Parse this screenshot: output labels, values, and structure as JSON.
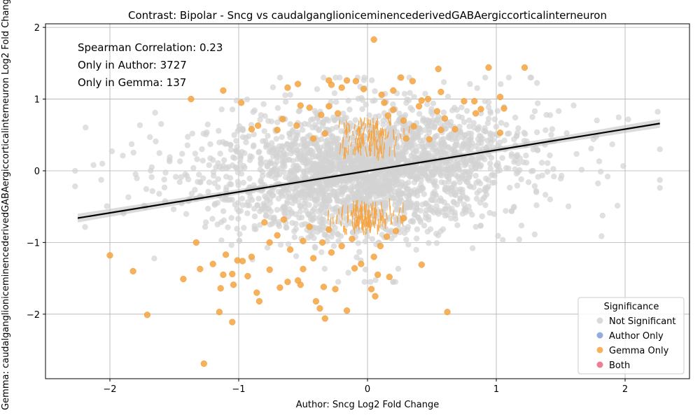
{
  "chart_data": {
    "type": "scatter",
    "title": "Contrast: Bipolar - Sncg vs caudalganglioniceminencederivedGABAergiccorticalinterneuron",
    "xlabel": "Author: Sncg Log2 Fold Change",
    "ylabel": "Gemma: caudalganglioniceminencederivedGABAergiccorticalinterneuron Log2 Fold Change",
    "xlim": [
      -2.5,
      2.5
    ],
    "ylim": [
      -2.9,
      2.05
    ],
    "x_ticks": [
      -2,
      -1,
      0,
      1,
      2
    ],
    "y_ticks": [
      -2,
      -1,
      0,
      1,
      2
    ],
    "grid": true,
    "annotations": [
      "Spearman Correlation: 0.23",
      "Only in Author: 3727",
      "Only in Gemma: 137"
    ],
    "legend": {
      "title": "Significance",
      "placement": "bottom-right",
      "entries": [
        {
          "label": "Not Significant",
          "color": "#d3d3d3"
        },
        {
          "label": "Author Only",
          "color": "#7f9ed8"
        },
        {
          "label": "Gemma Only",
          "color": "#f5a340"
        },
        {
          "label": "Both",
          "color": "#e8697e"
        }
      ]
    },
    "regression_line": {
      "x": [
        -2.25,
        2.27
      ],
      "y": [
        -0.66,
        0.66
      ],
      "color": "#000000"
    },
    "series": [
      {
        "name": "Gemma Only",
        "color": "#f5a340",
        "points": [
          [
            0.05,
            1.83
          ],
          [
            0.94,
            1.44
          ],
          [
            1.22,
            1.44
          ],
          [
            0.55,
            1.42
          ],
          [
            -1.12,
            1.12
          ],
          [
            -0.3,
            1.26
          ],
          [
            -0.16,
            1.26
          ],
          [
            -0.54,
            1.21
          ],
          [
            -0.62,
            1.16
          ],
          [
            -0.28,
            1.2
          ],
          [
            -0.2,
            1.16
          ],
          [
            0.26,
            1.3
          ],
          [
            0.35,
            1.25
          ],
          [
            0.57,
            1.1
          ],
          [
            1.03,
            1.03
          ],
          [
            -1.37,
            1.0
          ],
          [
            -0.98,
            0.95
          ],
          [
            0.83,
            0.97
          ],
          [
            0.75,
            0.97
          ],
          [
            1.06,
            0.87
          ],
          [
            0.84,
            0.8
          ],
          [
            0.88,
            0.86
          ],
          [
            -0.09,
            1.25
          ],
          [
            -0.03,
            1.14
          ],
          [
            0.11,
            1.06
          ],
          [
            0.2,
            1.12
          ],
          [
            0.42,
            0.98
          ],
          [
            0.47,
            1.0
          ],
          [
            0.4,
            0.9
          ],
          [
            0.54,
            0.83
          ],
          [
            0.6,
            0.73
          ],
          [
            0.57,
            0.57
          ],
          [
            0.68,
            0.58
          ],
          [
            1.03,
            0.53
          ],
          [
            0.48,
            0.44
          ],
          [
            -0.85,
            0.63
          ],
          [
            -0.9,
            0.58
          ],
          [
            -0.66,
            0.72
          ],
          [
            -0.7,
            0.57
          ],
          [
            -0.52,
            0.91
          ],
          [
            -0.45,
            0.88
          ],
          [
            -0.55,
            0.63
          ],
          [
            -0.3,
            0.9
          ],
          [
            -0.36,
            0.78
          ],
          [
            -0.23,
            0.8
          ],
          [
            0.28,
            0.7
          ],
          [
            0.36,
            0.62
          ],
          [
            0.13,
            0.95
          ],
          [
            0.2,
            0.85
          ],
          [
            -0.42,
            0.45
          ],
          [
            -0.33,
            0.52
          ],
          [
            0.3,
            0.45
          ],
          [
            0.16,
            0.77
          ],
          [
            -2.0,
            -1.18
          ],
          [
            -1.82,
            -1.4
          ],
          [
            -1.71,
            -2.01
          ],
          [
            -1.43,
            -1.51
          ],
          [
            -1.3,
            -1.37
          ],
          [
            -1.27,
            -2.69
          ],
          [
            -1.15,
            -1.97
          ],
          [
            -1.12,
            -1.45
          ],
          [
            -1.14,
            -1.64
          ],
          [
            -1.05,
            -2.11
          ],
          [
            -1.04,
            -1.59
          ],
          [
            -1.05,
            -1.44
          ],
          [
            -0.97,
            -1.26
          ],
          [
            -0.93,
            -1.47
          ],
          [
            -0.86,
            -1.7
          ],
          [
            -0.84,
            -1.82
          ],
          [
            -0.76,
            -1.38
          ],
          [
            -0.68,
            -1.63
          ],
          [
            -0.62,
            -1.55
          ],
          [
            -0.54,
            -1.53
          ],
          [
            -0.52,
            -1.59
          ],
          [
            -0.5,
            -1.37
          ],
          [
            -0.4,
            -1.82
          ],
          [
            -0.37,
            -1.92
          ],
          [
            -0.33,
            -2.06
          ],
          [
            -0.34,
            -1.62
          ],
          [
            -0.25,
            -1.65
          ],
          [
            -0.16,
            -1.95
          ],
          [
            -0.1,
            -1.36
          ],
          [
            -0.05,
            -1.3
          ],
          [
            0.03,
            -1.65
          ],
          [
            0.06,
            -1.75
          ],
          [
            0.08,
            -1.45
          ],
          [
            0.17,
            -1.48
          ],
          [
            0.42,
            -1.31
          ],
          [
            0.62,
            -1.97
          ],
          [
            -1.33,
            -1.0
          ],
          [
            -1.2,
            -1.3
          ],
          [
            -1.1,
            -1.17
          ],
          [
            -1.01,
            -1.25
          ],
          [
            -0.9,
            -1.2
          ],
          [
            -0.76,
            -1.0
          ],
          [
            -0.7,
            -0.9
          ],
          [
            -0.6,
            -1.1
          ],
          [
            -0.5,
            -0.98
          ],
          [
            -0.42,
            -1.22
          ],
          [
            -0.35,
            -1.0
          ],
          [
            -0.28,
            -1.14
          ],
          [
            -0.2,
            -1.05
          ],
          [
            -0.12,
            -0.95
          ],
          [
            0.05,
            -1.2
          ],
          [
            0.1,
            -1.05
          ],
          [
            0.15,
            -0.92
          ],
          [
            0.22,
            -0.84
          ],
          [
            0.28,
            -0.66
          ],
          [
            -0.8,
            -0.72
          ],
          [
            -0.65,
            -0.68
          ],
          [
            -0.45,
            -0.78
          ],
          [
            -0.3,
            -0.82
          ]
        ]
      }
    ]
  }
}
